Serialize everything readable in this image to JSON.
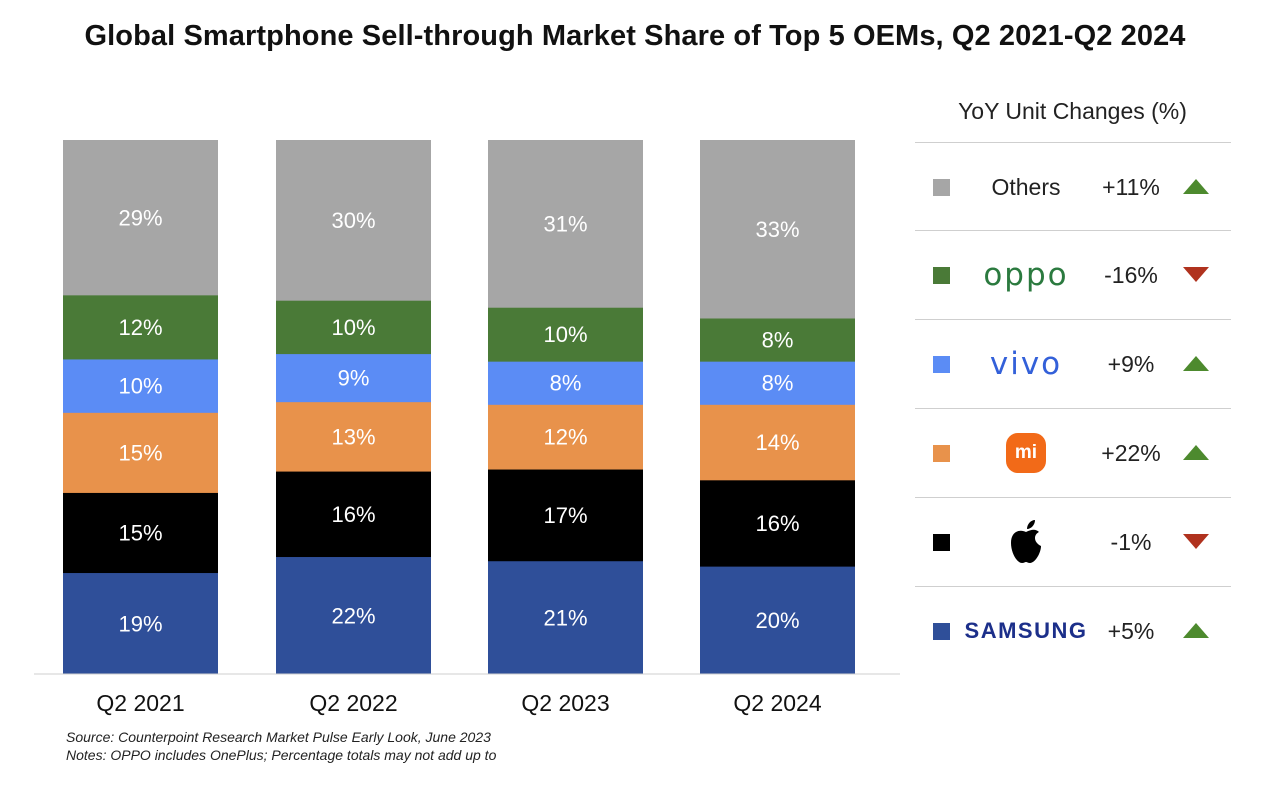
{
  "title": "Global Smartphone Sell-through Market Share of Top 5 OEMs, Q2 2021-Q2 2024",
  "legend": {
    "header": "YoY Unit Changes (%)",
    "rows": [
      {
        "key": "others",
        "brand": "Others",
        "change": "+11%",
        "direction": "up",
        "color": "#a6a6a6",
        "icon": "others-text"
      },
      {
        "key": "oppo",
        "brand": "oppo",
        "change": "-16%",
        "direction": "down",
        "color": "#4a7a37",
        "icon": "oppo-logo"
      },
      {
        "key": "vivo",
        "brand": "vivo",
        "change": "+9%",
        "direction": "up",
        "color": "#5b8cf5",
        "icon": "vivo-logo"
      },
      {
        "key": "xiaomi",
        "brand": "mi",
        "change": "+22%",
        "direction": "up",
        "color": "#e8924b",
        "icon": "xiaomi-logo"
      },
      {
        "key": "apple",
        "brand": "",
        "change": "-1%",
        "direction": "down",
        "color": "#000000",
        "icon": "apple-logo"
      },
      {
        "key": "samsung",
        "brand": "SAMSUNG",
        "change": "+5%",
        "direction": "up",
        "color": "#2f4f99",
        "icon": "samsung-logo"
      }
    ]
  },
  "source": "Source: Counterpoint Research Market Pulse Early Look, June 2023",
  "notes": "Notes: OPPO includes OnePlus; Percentage totals may not add up to",
  "chart_data": {
    "type": "bar",
    "stacked": true,
    "categories": [
      "Q2 2021",
      "Q2 2022",
      "Q2 2023",
      "Q2 2024"
    ],
    "series": [
      {
        "name": "Samsung",
        "color": "#2f4f99",
        "values": [
          19,
          22,
          21,
          20
        ],
        "labels": [
          "19%",
          "22%",
          "21%",
          "20%"
        ]
      },
      {
        "name": "Apple",
        "color": "#000000",
        "values": [
          15,
          16,
          17,
          16
        ],
        "labels": [
          "15%",
          "16%",
          "17%",
          "16%"
        ]
      },
      {
        "name": "Xiaomi",
        "color": "#e8924b",
        "values": [
          15,
          13,
          12,
          14
        ],
        "labels": [
          "15%",
          "13%",
          "12%",
          "14%"
        ]
      },
      {
        "name": "vivo",
        "color": "#5b8cf5",
        "values": [
          10,
          9,
          8,
          8
        ],
        "labels": [
          "10%",
          "9%",
          "8%",
          "8%"
        ]
      },
      {
        "name": "OPPO",
        "color": "#4a7a37",
        "values": [
          12,
          10,
          10,
          8
        ],
        "labels": [
          "12%",
          "10%",
          "10%",
          "8%"
        ]
      },
      {
        "name": "Others",
        "color": "#a6a6a6",
        "values": [
          29,
          30,
          31,
          33
        ],
        "labels": [
          "29%",
          "30%",
          "31%",
          "33%"
        ]
      }
    ],
    "ylim": [
      0,
      100
    ],
    "grid": false,
    "legend": "right"
  }
}
